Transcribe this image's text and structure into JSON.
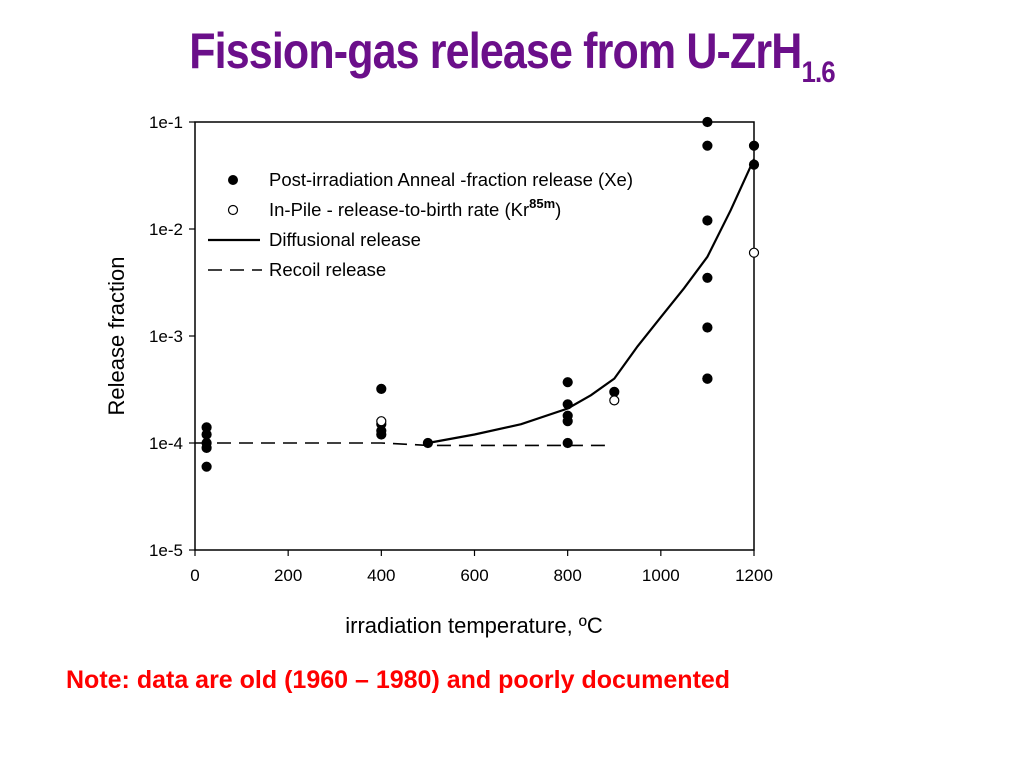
{
  "slide": {
    "title_main": "Fission-gas release from U-ZrH",
    "title_sub": "1.6",
    "note": "Note: data are old (1960 – 1980) and poorly documented"
  },
  "colors": {
    "title": "#6b0f8a",
    "note": "#ff0000"
  },
  "chart_data": {
    "type": "scatter",
    "title": "",
    "xlabel": "irradiation temperature, ºC",
    "ylabel": "Release fraction",
    "xlim": [
      0,
      1200
    ],
    "ylim": [
      1e-05,
      0.1
    ],
    "yscale": "log",
    "x_ticks": [
      0,
      200,
      400,
      600,
      800,
      1000,
      1200
    ],
    "x_tick_labels": [
      "0",
      "200",
      "400",
      "600",
      "800",
      "1000",
      "1200"
    ],
    "y_ticks": [
      1e-05,
      0.0001,
      0.001,
      0.01,
      0.1
    ],
    "y_tick_labels": [
      "1e-5",
      "1e-4",
      "1e-3",
      "1e-2",
      "1e-1"
    ],
    "grid": false,
    "legend_position": "top-left",
    "legend": [
      {
        "label": "Post-irradiation Anneal -fraction release (Xe)"
      },
      {
        "label_pre": "In-Pile - release-to-birth rate (Kr",
        "label_sup": "85m",
        "label_post": ")"
      },
      {
        "label": "Diffusional release"
      },
      {
        "label": "Recoil release"
      }
    ],
    "series": [
      {
        "name": "Post-irradiation Anneal -fraction release (Xe)",
        "marker": "filled-circle",
        "x": [
          25,
          25,
          25,
          25,
          25,
          400,
          400,
          400,
          400,
          500,
          800,
          800,
          800,
          800,
          800,
          900,
          1100,
          1100,
          1100,
          1100,
          1100,
          1100,
          1100,
          1200,
          1200
        ],
        "y": [
          0.00014,
          0.00012,
          0.0001,
          9e-05,
          6e-05,
          0.00032,
          0.00015,
          0.00013,
          0.00012,
          0.0001,
          0.00037,
          0.00023,
          0.00018,
          0.00016,
          0.0001,
          0.0003,
          0.1,
          0.06,
          0.012,
          0.0035,
          0.0012,
          0.0004,
          0.0004,
          0.06,
          0.04
        ]
      },
      {
        "name": "In-Pile - release-to-birth rate (Kr85m)",
        "marker": "open-circle",
        "x": [
          400,
          900,
          1200
        ],
        "y": [
          0.00016,
          0.00025,
          0.006
        ]
      },
      {
        "name": "Diffusional release",
        "line": "solid",
        "x": [
          500,
          600,
          700,
          800,
          850,
          900,
          950,
          1000,
          1050,
          1100,
          1150,
          1200
        ],
        "y": [
          0.0001,
          0.00012,
          0.00015,
          0.00021,
          0.00028,
          0.0004,
          0.0008,
          0.0015,
          0.0028,
          0.0055,
          0.015,
          0.045
        ]
      },
      {
        "name": "Recoil release",
        "line": "dashed",
        "x": [
          0,
          400,
          500,
          880
        ],
        "y": [
          0.0001,
          0.0001,
          9.5e-05,
          9.5e-05
        ]
      }
    ]
  }
}
